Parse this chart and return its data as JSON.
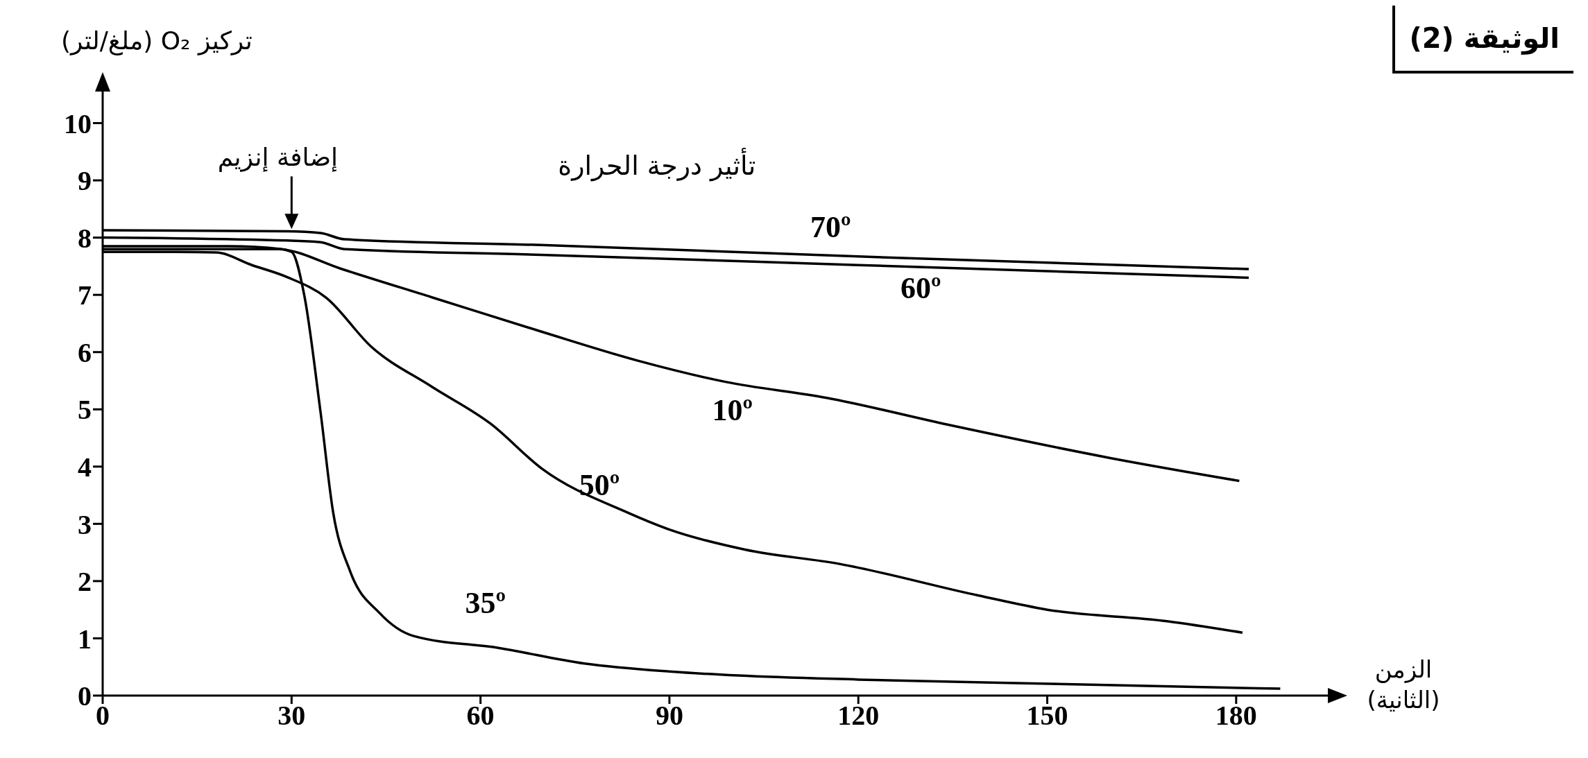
{
  "chart_data": {
    "type": "line",
    "title": "تأثير درجة الحرارة",
    "ylabel": "تركيز O₂ (ملغ/لتر)",
    "xlabel": "الزمن (الثانية)",
    "annotations": [
      "الوثيقة (2)",
      {
        "text": "إضافة إنزيم",
        "x": 30,
        "y": 8.1
      }
    ],
    "xlim": [
      0,
      195
    ],
    "xticks": [
      0,
      30,
      60,
      90,
      120,
      150,
      180
    ],
    "ylim": [
      0,
      10.6
    ],
    "yticks": [
      0,
      1,
      2,
      3,
      4,
      5,
      6,
      7,
      8,
      9,
      10
    ],
    "marker": "none",
    "line_style": "solid",
    "series": [
      {
        "name": "70º",
        "color": "#000000",
        "x": [
          0,
          29.3,
          34.6,
          38.4,
          69.6,
          120,
          182
        ],
        "values": [
          8.13,
          8.11,
          8.08,
          7.97,
          7.87,
          7.67,
          7.45
        ]
      },
      {
        "name": "60º",
        "color": "#000000",
        "x": [
          0,
          29.3,
          34.6,
          38.4,
          69.6,
          120,
          182
        ],
        "values": [
          8.0,
          7.95,
          7.92,
          7.8,
          7.7,
          7.52,
          7.3
        ]
      },
      {
        "name": "10º",
        "color": "#000000",
        "x": [
          0,
          20,
          28.4,
          38,
          52.2,
          69.6,
          85,
          98.9,
          115,
          134.3,
          160,
          180.5
        ],
        "values": [
          7.85,
          7.85,
          7.8,
          7.45,
          6.96,
          6.36,
          5.85,
          5.48,
          5.2,
          4.73,
          4.15,
          3.75
        ]
      },
      {
        "name": "50º",
        "color": "#000000",
        "x": [
          0,
          10,
          18,
          23.7,
          29.3,
          35.5,
          42.6,
          52.2,
          61.6,
          69.8,
          83.3,
          90,
          102,
          117,
          139,
          150,
          169,
          181
        ],
        "values": [
          7.75,
          7.75,
          7.74,
          7.52,
          7.31,
          6.95,
          6.1,
          5.4,
          4.75,
          3.96,
          3.2,
          2.9,
          2.55,
          2.3,
          1.75,
          1.5,
          1.3,
          1.1
        ]
      },
      {
        "name": "35º",
        "color": "#000000",
        "x": [
          0,
          20,
          28,
          30,
          32,
          34.6,
          36.6,
          39.3,
          44,
          49.4,
          63,
          76.5,
          90,
          101,
          120,
          153,
          187
        ],
        "values": [
          7.8,
          7.8,
          7.8,
          7.75,
          7.0,
          4.95,
          3.2,
          2.17,
          1.44,
          1.04,
          0.83,
          0.56,
          0.42,
          0.35,
          0.28,
          0.2,
          0.12
        ]
      }
    ]
  }
}
